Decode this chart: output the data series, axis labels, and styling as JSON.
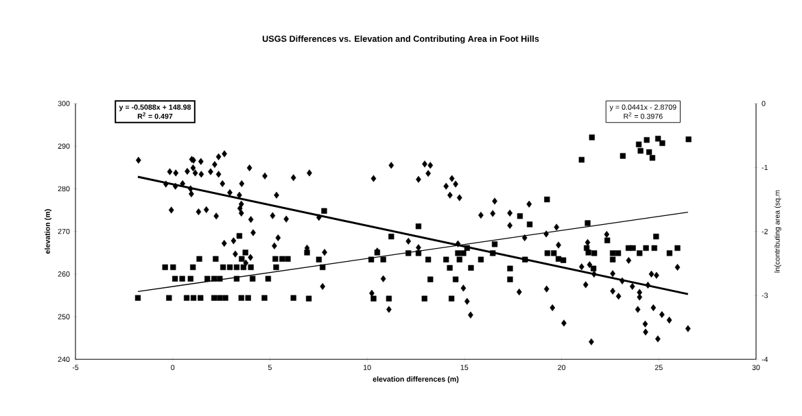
{
  "chart_data": {
    "type": "scatter",
    "title": "USGS Differences vs. Elevation and Contributing Area in Foot Hills",
    "xlabel": "elevation differences (m)",
    "ylabel": "elevation (m)",
    "y2label": "ln(contributing area (sq.m",
    "annotations": [
      "y = -0.5088x + 148.98",
      "R$^{2}$ = 0.497",
      "y = 0.0441x - 2.8709",
      "R$^{2}$ = 0.3976"
    ],
    "xlim": [
      -5,
      30
    ],
    "xticks": [
      -5,
      0,
      5,
      10,
      15,
      20,
      25,
      30
    ],
    "ylim": [
      240,
      300
    ],
    "yticks": [
      240,
      250,
      260,
      270,
      280,
      290,
      300
    ],
    "y2lim": [
      -4,
      0
    ],
    "y2ticks": [
      -4,
      -3,
      -2,
      -1,
      0
    ],
    "grid": false,
    "series": [
      {
        "marker": "diamond",
        "color": "#000000",
        "x": [
          -1.76,
          -0.15,
          0.16,
          0.98,
          1.07,
          1.45,
          0.75,
          1.05,
          1.16,
          1.47,
          1.95,
          2.16,
          2.36,
          2.66,
          2.36,
          2.56,
          3.55,
          3.95,
          4.74,
          6.21,
          -0.35,
          0.14,
          0.51,
          0.92,
          0.96,
          2.94,
          3.43,
          3.53,
          3.46,
          3.53,
          -0.07,
          1.33,
          1.73,
          2.24,
          5.14,
          5.34,
          5.84,
          4.02,
          4.14,
          2.65,
          3.13,
          5.42,
          5.23,
          3.22,
          4.0,
          3.76,
          7.03,
          7.52,
          10.33,
          11.24,
          12.96,
          13.25,
          13.14,
          12.64,
          14.36,
          14.06,
          14.55,
          14.26,
          14.75,
          16.56,
          15.85,
          16.46,
          6.91,
          7.81,
          10.52,
          12.12,
          12.64,
          14.67,
          10.83,
          7.71,
          10.24,
          11.12,
          14.95,
          15.14,
          15.32,
          17.34,
          17.34,
          18.33,
          19.74,
          19.84,
          19.21,
          18.1,
          17.82,
          19.23,
          19.53,
          20.12,
          21.53,
          21.34,
          21.03,
          21.44,
          21.24,
          21.67,
          22.32,
          22.63,
          22.63,
          22.93,
          23.12,
          23.45,
          23.64,
          24.01,
          24.01,
          23.92,
          24.3,
          24.32,
          24.72,
          25.16,
          25.54,
          24.95,
          24.62,
          24.88,
          24.44,
          25.96,
          26.5
        ],
        "values": [
          286.7,
          284.0,
          283.7,
          286.9,
          286.7,
          286.4,
          284.1,
          284.9,
          283.7,
          283.4,
          284.0,
          285.7,
          287.5,
          288.2,
          283.4,
          281.2,
          281.2,
          284.9,
          283.0,
          282.6,
          281.1,
          280.6,
          281.2,
          280.0,
          278.8,
          279.1,
          278.5,
          276.4,
          275.4,
          274.3,
          275.0,
          274.6,
          275.1,
          273.6,
          273.7,
          278.5,
          272.9,
          272.8,
          269.7,
          267.2,
          267.8,
          268.5,
          266.6,
          264.7,
          263.9,
          262.6,
          283.7,
          273.3,
          282.4,
          285.5,
          285.8,
          285.5,
          283.6,
          282.2,
          282.4,
          280.6,
          281.1,
          278.5,
          277.9,
          277.1,
          273.8,
          274.2,
          266.1,
          265.1,
          265.4,
          267.7,
          266.2,
          267.1,
          258.9,
          257.1,
          255.5,
          251.7,
          256.7,
          253.6,
          250.4,
          274.3,
          271.4,
          276.4,
          271.0,
          266.8,
          269.4,
          268.5,
          255.8,
          256.5,
          252.1,
          248.5,
          244.1,
          267.4,
          261.7,
          262.2,
          257.5,
          260.0,
          269.3,
          260.1,
          256.0,
          254.8,
          258.4,
          263.2,
          257.1,
          255.7,
          254.6,
          251.7,
          248.3,
          246.4,
          252.1,
          250.5,
          249.2,
          244.8,
          260.0,
          259.7,
          257.4,
          261.6,
          247.2
        ]
      },
      {
        "marker": "square",
        "axis": "y2",
        "color": "#000000",
        "x": [
          1.37,
          2.21,
          3.55,
          5.28,
          5.63,
          5.92,
          -0.39,
          0.02,
          1.04,
          2.59,
          2.94,
          3.29,
          3.64,
          4.02,
          5.32,
          0.12,
          0.49,
          0.92,
          1.78,
          2.13,
          2.42,
          3.29,
          4.11,
          4.91,
          -1.79,
          -0.19,
          0.72,
          1.07,
          1.43,
          2.13,
          2.42,
          2.71,
          3.53,
          3.88,
          4.72,
          6.21,
          3.43,
          3.74,
          7.79,
          6.91,
          7.52,
          7.71,
          10.21,
          10.83,
          10.52,
          11.24,
          12.64,
          12.12,
          12.64,
          13.14,
          14.06,
          14.25,
          13.25,
          14.55,
          14.67,
          14.95,
          14.75,
          15.14,
          15.34,
          15.85,
          16.56,
          16.46,
          7.0,
          10.33,
          11.12,
          12.95,
          14.34,
          21.56,
          21.03,
          23.15,
          23.97,
          24.06,
          24.38,
          24.5,
          24.67,
          24.96,
          25.18,
          26.53,
          19.25,
          17.86,
          18.36,
          21.34,
          22.35,
          24.86,
          17.35,
          17.35,
          18.12,
          19.27,
          19.6,
          19.84,
          20.09,
          21.29,
          21.38,
          21.68,
          21.64,
          22.63,
          22.91,
          22.63,
          23.44,
          23.67,
          24.01,
          24.34,
          24.77,
          25.55,
          25.96
        ],
        "values": [
          -2.43,
          -2.43,
          -2.43,
          -2.43,
          -2.43,
          -2.43,
          -2.56,
          -2.56,
          -2.56,
          -2.56,
          -2.56,
          -2.56,
          -2.56,
          -2.56,
          -2.56,
          -2.74,
          -2.74,
          -2.74,
          -2.74,
          -2.74,
          -2.74,
          -2.74,
          -2.74,
          -2.74,
          -3.04,
          -3.04,
          -3.04,
          -3.04,
          -3.04,
          -3.04,
          -3.04,
          -3.04,
          -3.04,
          -3.04,
          -3.04,
          -3.04,
          -2.07,
          -2.33,
          -1.68,
          -2.33,
          -2.44,
          -2.56,
          -2.44,
          -2.44,
          -2.33,
          -2.08,
          -1.92,
          -2.34,
          -2.34,
          -2.44,
          -2.44,
          -2.57,
          -2.75,
          -2.75,
          -2.34,
          -2.34,
          -2.44,
          -2.26,
          -2.57,
          -2.44,
          -2.2,
          -2.34,
          -3.05,
          -3.05,
          -3.05,
          -3.05,
          -3.05,
          -0.53,
          -0.88,
          -0.82,
          -0.64,
          -0.74,
          -0.57,
          -0.76,
          -0.85,
          -0.55,
          -0.62,
          -0.56,
          -1.5,
          -1.76,
          -1.89,
          -1.87,
          -2.14,
          -2.08,
          -2.58,
          -2.75,
          -2.44,
          -2.34,
          -2.34,
          -2.43,
          -2.45,
          -2.26,
          -2.33,
          -2.34,
          -2.58,
          -2.34,
          -2.34,
          -2.44,
          -2.26,
          -2.26,
          -2.34,
          -2.26,
          -2.26,
          -2.34,
          -2.26
        ]
      },
      {
        "type": "line",
        "marker": "none",
        "color": "#000000",
        "x": [
          -1.79,
          26.5
        ],
        "values": [
          282.8,
          255.3
        ]
      },
      {
        "type": "line",
        "marker": "none",
        "axis": "y2",
        "color": "#000000",
        "x": [
          -1.79,
          26.5
        ],
        "values": [
          -2.94,
          -1.7
        ]
      }
    ]
  }
}
